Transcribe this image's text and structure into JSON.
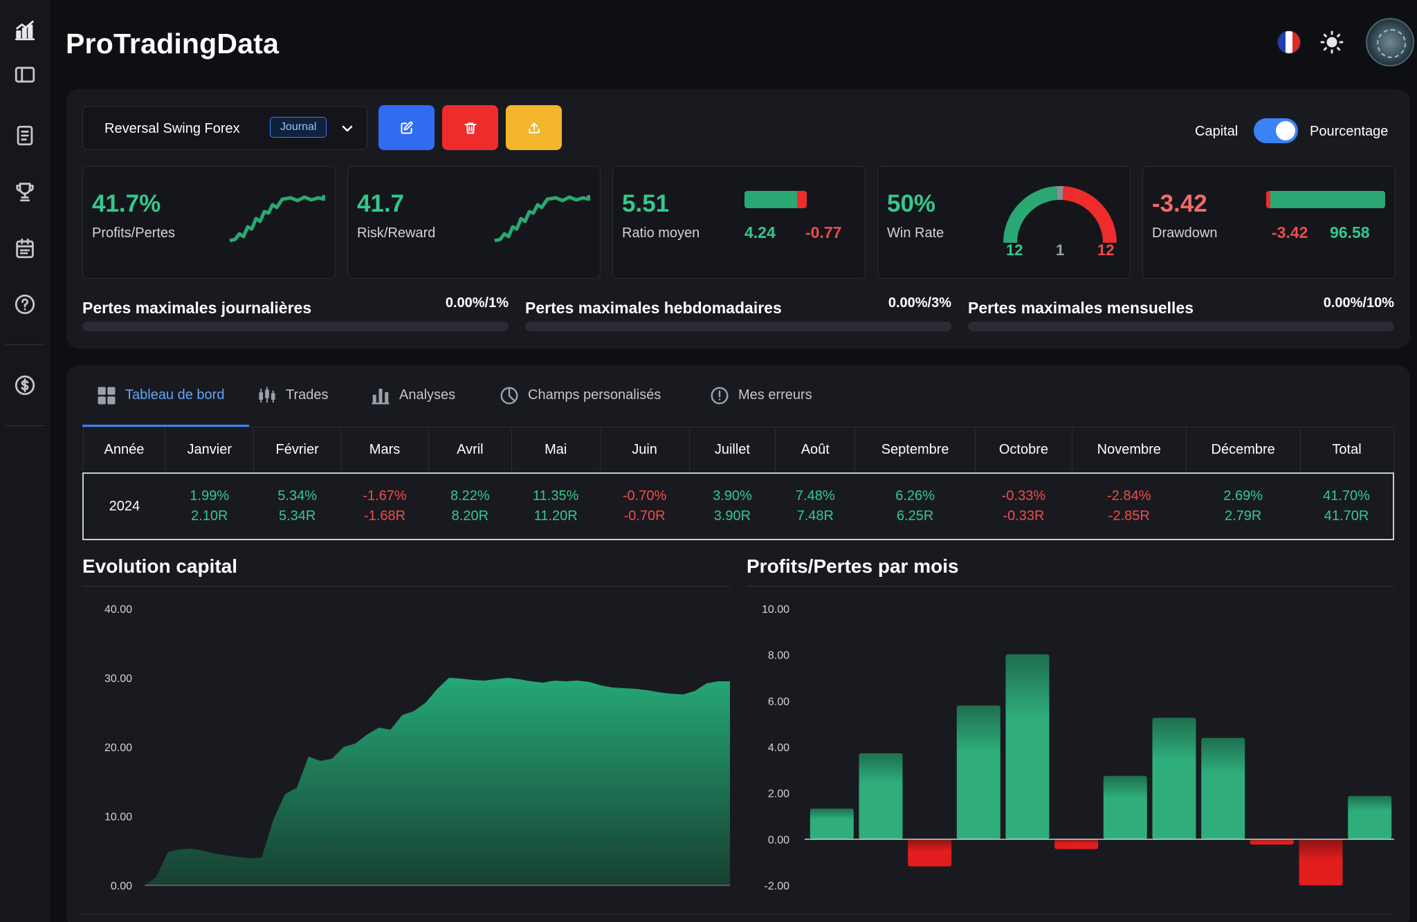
{
  "app": {
    "title": "ProTradingData"
  },
  "header": {
    "language_icon": "flag-fr-icon",
    "theme_icon": "sun-icon",
    "avatar_icon": "avatar"
  },
  "sidebar": {
    "items": [
      {
        "name": "sidebar-item-dashboard",
        "icon": "chart-logo-icon"
      },
      {
        "name": "sidebar-item-toggle",
        "icon": "sidebar-toggle-icon"
      },
      {
        "name": "sidebar-item-journal",
        "icon": "document-icon"
      },
      {
        "name": "sidebar-item-challenges",
        "icon": "trophy-icon"
      },
      {
        "name": "sidebar-item-calendar",
        "icon": "calendar-icon"
      },
      {
        "name": "sidebar-item-help",
        "icon": "help-circle-icon"
      },
      {
        "name": "sidebar-item-billing",
        "icon": "dollar-circle-icon"
      }
    ]
  },
  "toolbar": {
    "strategy_name": "Reversal Swing Forex",
    "strategy_badge": "Journal",
    "edit_icon": "edit-icon",
    "delete_icon": "trash-icon",
    "export_icon": "upload-icon",
    "toggle_left_label": "Capital",
    "toggle_right_label": "Pourcentage",
    "toggle_on": true
  },
  "colors": {
    "green": "#34c98e",
    "red": "#f24b4b",
    "blue": "#3b82f6",
    "amber": "#f3b62c",
    "danger": "#ef2c2c"
  },
  "stats": {
    "profit": {
      "value": "41.7%",
      "label": "Profits/Pertes"
    },
    "risk_reward": {
      "value": "41.7",
      "label": "Risk/Reward"
    },
    "avg_ratio": {
      "value": "5.51",
      "label": "Ratio moyen",
      "good": "4.24",
      "bad": "-0.77"
    },
    "win_rate": {
      "value": "50%",
      "label": "Win Rate",
      "wins": "12",
      "breakeven": "1",
      "losses": "12"
    },
    "drawdown": {
      "value": "-3.42",
      "label": "Drawdown",
      "bad": "-3.42",
      "good": "96.58"
    }
  },
  "limits": [
    {
      "label": "Pertes maximales journalières",
      "value": "0.00%/1%",
      "fill": 0
    },
    {
      "label": "Pertes maximales hebdomadaires",
      "value": "0.00%/3%",
      "fill": 0
    },
    {
      "label": "Pertes maximales mensuelles",
      "value": "0.00%/10%",
      "fill": 0
    }
  ],
  "tabs": [
    {
      "label": "Tableau de bord",
      "icon": "grid-icon",
      "active": true
    },
    {
      "label": "Trades",
      "icon": "candlestick-icon",
      "active": false
    },
    {
      "label": "Analyses",
      "icon": "bar-chart-icon",
      "active": false
    },
    {
      "label": "Champs personalisés",
      "icon": "pie-chart-icon",
      "active": false
    },
    {
      "label": "Mes erreurs",
      "icon": "alert-circle-icon",
      "active": false
    }
  ],
  "monthly_table": {
    "headers": [
      "Année",
      "Janvier",
      "Février",
      "Mars",
      "Avril",
      "Mai",
      "Juin",
      "Juillet",
      "Août",
      "Septembre",
      "Octobre",
      "Novembre",
      "Décembre",
      "Total"
    ],
    "row": {
      "year": "2024",
      "cells": [
        {
          "pct": "1.99%",
          "r": "2.10R",
          "positive": true
        },
        {
          "pct": "5.34%",
          "r": "5.34R",
          "positive": true
        },
        {
          "pct": "-1.67%",
          "r": "-1.68R",
          "positive": false
        },
        {
          "pct": "8.22%",
          "r": "8.20R",
          "positive": true
        },
        {
          "pct": "11.35%",
          "r": "11.20R",
          "positive": true
        },
        {
          "pct": "-0.70%",
          "r": "-0.70R",
          "positive": false
        },
        {
          "pct": "3.90%",
          "r": "3.90R",
          "positive": true
        },
        {
          "pct": "7.48%",
          "r": "7.48R",
          "positive": true
        },
        {
          "pct": "6.26%",
          "r": "6.25R",
          "positive": true
        },
        {
          "pct": "-0.33%",
          "r": "-0.33R",
          "positive": false
        },
        {
          "pct": "-2.84%",
          "r": "-2.85R",
          "positive": false
        },
        {
          "pct": "2.69%",
          "r": "2.79R",
          "positive": true
        },
        {
          "pct": "41.70%",
          "r": "41.70R",
          "positive": true
        }
      ]
    }
  },
  "chart_data": [
    {
      "type": "area",
      "title": "Evolution capital",
      "ylim": [
        0,
        40
      ],
      "yticks": [
        "0.00",
        "10.00",
        "20.00",
        "30.00",
        "40.00"
      ],
      "grid": false,
      "values": [
        0,
        1.2,
        4.8,
        5.2,
        5.3,
        5.0,
        4.6,
        4.3,
        4.1,
        3.9,
        4.0,
        9.5,
        13.2,
        14.1,
        18.6,
        18.0,
        18.3,
        20.0,
        20.5,
        21.8,
        22.8,
        22.5,
        24.6,
        25.2,
        26.4,
        28.4,
        30.0,
        29.9,
        29.7,
        29.6,
        29.8,
        30.0,
        29.8,
        29.5,
        29.3,
        29.6,
        29.5,
        29.6,
        29.4,
        28.9,
        28.6,
        28.5,
        28.4,
        28.2,
        27.9,
        27.7,
        27.6,
        28.1,
        29.2,
        29.5,
        29.5
      ]
    },
    {
      "type": "bar",
      "title": "Profits/Pertes par mois",
      "ylim": [
        -2,
        10
      ],
      "yticks": [
        "-2.00",
        "0.00",
        "2.00",
        "4.00",
        "6.00",
        "8.00",
        "10.00"
      ],
      "values": [
        1.33,
        3.73,
        -1.18,
        5.8,
        8.02,
        -0.43,
        2.75,
        5.27,
        4.4,
        -0.23,
        -2.0,
        1.88
      ]
    }
  ]
}
